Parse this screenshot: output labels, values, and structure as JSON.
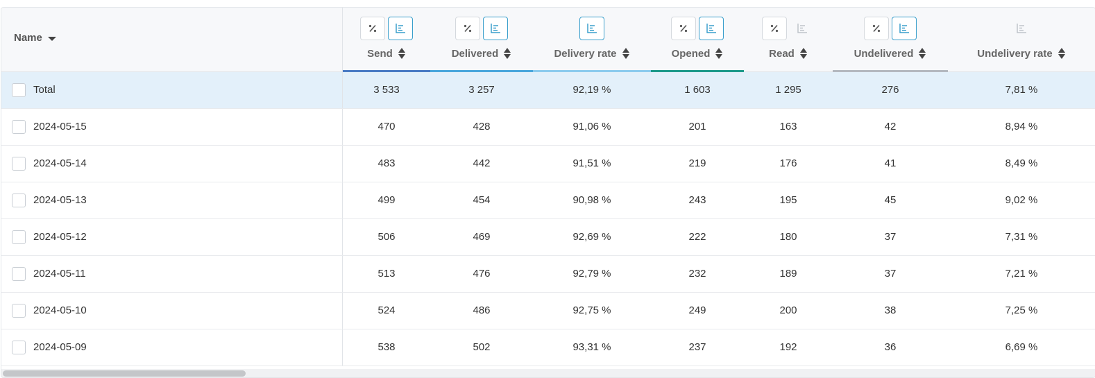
{
  "name_header": "Name",
  "columns": [
    {
      "key": "send",
      "label": "Send",
      "percent_btn": true,
      "chart_active": true,
      "underline": "#4a7bc4"
    },
    {
      "key": "delivered",
      "label": "Delivered",
      "percent_btn": true,
      "chart_active": true,
      "underline": "#49a6dc"
    },
    {
      "key": "delivery_rate",
      "label": "Delivery rate",
      "percent_btn": false,
      "chart_active": true,
      "underline": "#8ccbee"
    },
    {
      "key": "opened",
      "label": "Opened",
      "percent_btn": true,
      "chart_active": true,
      "underline": "#1e9a8a"
    },
    {
      "key": "read",
      "label": "Read",
      "percent_btn": true,
      "chart_active": false,
      "underline": ""
    },
    {
      "key": "undelivered",
      "label": "Undelivered",
      "percent_btn": true,
      "chart_active": true,
      "underline": "#b4b8bf"
    },
    {
      "key": "undelivery_rate",
      "label": "Undelivery rate",
      "percent_btn": false,
      "chart_active": false,
      "underline": ""
    }
  ],
  "rows": [
    {
      "name": "Total",
      "cells": [
        "3 533",
        "3 257",
        "92,19 %",
        "1 603",
        "1 295",
        "276",
        "7,81 %"
      ],
      "total": true
    },
    {
      "name": "2024-05-15",
      "cells": [
        "470",
        "428",
        "91,06 %",
        "201",
        "163",
        "42",
        "8,94 %"
      ]
    },
    {
      "name": "2024-05-14",
      "cells": [
        "483",
        "442",
        "91,51 %",
        "219",
        "176",
        "41",
        "8,49 %"
      ]
    },
    {
      "name": "2024-05-13",
      "cells": [
        "499",
        "454",
        "90,98 %",
        "243",
        "195",
        "45",
        "9,02 %"
      ]
    },
    {
      "name": "2024-05-12",
      "cells": [
        "506",
        "469",
        "92,69 %",
        "222",
        "180",
        "37",
        "7,31 %"
      ]
    },
    {
      "name": "2024-05-11",
      "cells": [
        "513",
        "476",
        "92,79 %",
        "232",
        "189",
        "37",
        "7,21 %"
      ]
    },
    {
      "name": "2024-05-10",
      "cells": [
        "524",
        "486",
        "92,75 %",
        "249",
        "200",
        "38",
        "7,25 %"
      ]
    },
    {
      "name": "2024-05-09",
      "cells": [
        "538",
        "502",
        "93,31 %",
        "237",
        "192",
        "36",
        "6,69 %"
      ]
    }
  ]
}
